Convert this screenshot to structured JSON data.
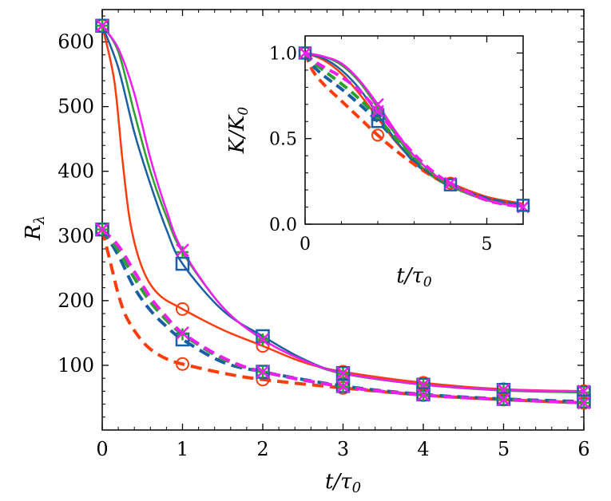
{
  "chart_data": [
    {
      "name": "main",
      "type": "line",
      "xlabel": "t/τ0",
      "ylabel": "Rλ",
      "xlim": [
        0,
        6
      ],
      "ylim": [
        0,
        650
      ],
      "xticks": [
        0,
        1,
        2,
        3,
        4,
        5,
        6
      ],
      "yticks": [
        100,
        200,
        300,
        400,
        500,
        600
      ],
      "series": [
        {
          "name": "red-solid",
          "color": "#ff3d0c",
          "dash": false,
          "marker": "circle",
          "x": [
            0,
            0.15,
            0.25,
            0.35,
            0.5,
            0.7,
            1,
            1.5,
            2,
            2.5,
            3,
            4,
            5,
            6
          ],
          "y": [
            625,
            540,
            420,
            320,
            250,
            210,
            187,
            155,
            130,
            105,
            90,
            73,
            63,
            60
          ]
        },
        {
          "name": "blue-solid",
          "color": "#1a5fa4",
          "dash": false,
          "marker": "square",
          "x": [
            0,
            0.2,
            0.4,
            0.6,
            0.8,
            1,
            1.5,
            2,
            2.5,
            3,
            4,
            5,
            6
          ],
          "y": [
            625,
            560,
            460,
            380,
            310,
            257,
            185,
            145,
            110,
            88,
            70,
            62,
            58
          ]
        },
        {
          "name": "green-solid",
          "color": "#2ca02c",
          "dash": false,
          "marker": "plus",
          "x": [
            0,
            0.2,
            0.4,
            0.6,
            0.8,
            1,
            1.5,
            2,
            2.5,
            3,
            4,
            5,
            6
          ],
          "y": [
            625,
            585,
            490,
            400,
            330,
            275,
            190,
            140,
            108,
            87,
            70,
            61,
            58
          ]
        },
        {
          "name": "magenta-solid",
          "color": "#f01ef0",
          "dash": false,
          "marker": "x",
          "x": [
            0,
            0.2,
            0.4,
            0.6,
            0.8,
            1,
            1.5,
            2,
            2.5,
            3,
            4,
            5,
            6
          ],
          "y": [
            625,
            590,
            520,
            420,
            340,
            278,
            190,
            140,
            108,
            88,
            70,
            62,
            60
          ]
        },
        {
          "name": "red-dashed",
          "color": "#ff3d0c",
          "dash": true,
          "marker": "circle",
          "x": [
            0,
            0.1,
            0.2,
            0.3,
            0.45,
            0.6,
            0.8,
            1,
            1.5,
            2,
            3,
            4,
            5,
            6
          ],
          "y": [
            310,
            260,
            210,
            175,
            145,
            125,
            110,
            102,
            88,
            78,
            65,
            54,
            47,
            42
          ]
        },
        {
          "name": "blue-dashed",
          "color": "#1a5fa4",
          "dash": true,
          "marker": "square",
          "x": [
            0,
            0.2,
            0.4,
            0.6,
            0.8,
            1,
            1.5,
            2,
            3,
            4,
            5,
            6
          ],
          "y": [
            310,
            270,
            220,
            185,
            160,
            140,
            105,
            90,
            68,
            55,
            48,
            44
          ]
        },
        {
          "name": "green-dashed",
          "color": "#2ca02c",
          "dash": true,
          "marker": "plus",
          "x": [
            0,
            0.2,
            0.4,
            0.6,
            0.8,
            1,
            1.5,
            2,
            3,
            4,
            5,
            6
          ],
          "y": [
            310,
            278,
            235,
            198,
            170,
            148,
            110,
            90,
            67,
            54,
            47,
            42
          ]
        },
        {
          "name": "magenta-dashed",
          "color": "#f01ef0",
          "dash": true,
          "marker": "x",
          "x": [
            0,
            0.2,
            0.4,
            0.6,
            0.8,
            1,
            1.5,
            2,
            3,
            4,
            5,
            6
          ],
          "y": [
            310,
            285,
            245,
            205,
            175,
            150,
            112,
            90,
            67,
            54,
            47,
            42
          ]
        }
      ],
      "markers_at": [
        0,
        1,
        2,
        3,
        4,
        5,
        6
      ],
      "marker_values": {
        "red-solid": [
          625,
          187,
          130,
          90,
          73,
          63,
          60
        ],
        "blue-solid": [
          625,
          257,
          145,
          88,
          70,
          62,
          58
        ],
        "green-solid": [
          625,
          275,
          140,
          87,
          70,
          61,
          58
        ],
        "magenta-solid": [
          625,
          278,
          140,
          88,
          70,
          62,
          60
        ],
        "red-dashed": [
          310,
          102,
          78,
          65,
          54,
          47,
          42
        ],
        "blue-dashed": [
          310,
          140,
          90,
          68,
          55,
          48,
          44
        ],
        "green-dashed": [
          310,
          148,
          90,
          67,
          54,
          47,
          42
        ],
        "magenta-dashed": [
          310,
          150,
          90,
          67,
          54,
          47,
          42
        ]
      }
    },
    {
      "name": "inset",
      "type": "line",
      "xlabel": "t/τ0",
      "ylabel": "K/K0",
      "xlim": [
        0,
        6
      ],
      "ylim": [
        0,
        1.1
      ],
      "xticks": [
        0,
        5
      ],
      "yticks": [
        0.0,
        0.5,
        1.0
      ],
      "ytick_labels": [
        "0.0",
        "0.5",
        "1.0"
      ],
      "series": [
        {
          "name": "red-solid",
          "color": "#ff3d0c",
          "dash": false,
          "x": [
            0,
            0.5,
            1,
            1.5,
            2,
            2.5,
            3,
            3.5,
            4,
            5,
            6
          ],
          "y": [
            1.0,
            0.96,
            0.88,
            0.76,
            0.62,
            0.48,
            0.37,
            0.29,
            0.24,
            0.16,
            0.12
          ]
        },
        {
          "name": "blue-solid",
          "color": "#1a5fa4",
          "dash": false,
          "x": [
            0,
            0.5,
            1,
            1.5,
            2,
            2.5,
            3,
            3.5,
            4,
            5,
            6
          ],
          "y": [
            1.0,
            0.97,
            0.9,
            0.79,
            0.64,
            0.49,
            0.36,
            0.28,
            0.23,
            0.15,
            0.11
          ]
        },
        {
          "name": "green-solid",
          "color": "#2ca02c",
          "dash": false,
          "x": [
            0,
            0.5,
            1,
            1.5,
            2,
            2.5,
            3,
            3.5,
            4,
            5,
            6
          ],
          "y": [
            1.0,
            0.98,
            0.93,
            0.83,
            0.68,
            0.52,
            0.38,
            0.28,
            0.22,
            0.14,
            0.1
          ]
        },
        {
          "name": "magenta-solid",
          "color": "#f01ef0",
          "dash": false,
          "x": [
            0,
            0.5,
            1,
            1.5,
            2,
            2.5,
            3,
            3.5,
            4,
            5,
            6
          ],
          "y": [
            1.0,
            0.98,
            0.94,
            0.84,
            0.7,
            0.54,
            0.4,
            0.3,
            0.23,
            0.14,
            0.1
          ]
        },
        {
          "name": "red-dashed",
          "color": "#ff3d0c",
          "dash": true,
          "x": [
            0,
            0.2,
            0.5,
            1,
            1.5,
            2,
            2.5,
            3,
            3.5,
            4,
            5,
            6
          ],
          "y": [
            1.0,
            0.9,
            0.82,
            0.72,
            0.62,
            0.52,
            0.43,
            0.35,
            0.28,
            0.23,
            0.15,
            0.11
          ]
        },
        {
          "name": "blue-dashed",
          "color": "#1a5fa4",
          "dash": true,
          "x": [
            0,
            0.2,
            0.5,
            1,
            1.5,
            2,
            2.5,
            3,
            3.5,
            4,
            5,
            6
          ],
          "y": [
            1.0,
            0.93,
            0.87,
            0.79,
            0.7,
            0.6,
            0.49,
            0.38,
            0.29,
            0.23,
            0.15,
            0.11
          ]
        },
        {
          "name": "green-dashed",
          "color": "#2ca02c",
          "dash": true,
          "x": [
            0,
            0.2,
            0.5,
            1,
            1.5,
            2,
            2.5,
            3,
            3.5,
            4,
            5,
            6
          ],
          "y": [
            1.0,
            0.95,
            0.9,
            0.82,
            0.73,
            0.62,
            0.5,
            0.39,
            0.3,
            0.23,
            0.14,
            0.1
          ]
        },
        {
          "name": "magenta-dashed",
          "color": "#f01ef0",
          "dash": true,
          "x": [
            0,
            0.2,
            0.5,
            1,
            1.5,
            2,
            2.5,
            3,
            3.5,
            4,
            5,
            6
          ],
          "y": [
            1.0,
            0.96,
            0.92,
            0.86,
            0.78,
            0.66,
            0.53,
            0.41,
            0.31,
            0.24,
            0.14,
            0.1
          ]
        }
      ],
      "markers": [
        {
          "series": "red-dashed",
          "marker": "circle",
          "x": 2,
          "y": 0.52
        },
        {
          "series": "red-solid",
          "marker": "circle",
          "x": 4,
          "y": 0.24
        },
        {
          "series": "blue-solid",
          "marker": "square",
          "x": 2,
          "y": 0.64
        },
        {
          "series": "blue-dashed",
          "marker": "square",
          "x": 2,
          "y": 0.6
        },
        {
          "series": "blue-solid",
          "marker": "square",
          "x": 4,
          "y": 0.23
        },
        {
          "series": "green-solid",
          "marker": "plus",
          "x": 2,
          "y": 0.68
        },
        {
          "series": "magenta-solid",
          "marker": "x",
          "x": 2,
          "y": 0.7
        },
        {
          "series": "magenta-dashed",
          "marker": "x",
          "x": 2,
          "y": 0.66
        },
        {
          "series": "magenta-dashed",
          "marker": "x",
          "x": 4,
          "y": 0.24
        },
        {
          "series": "magenta-solid",
          "marker": "x",
          "x": 6,
          "y": 0.1
        },
        {
          "series": "blue-solid",
          "marker": "square",
          "x": 6,
          "y": 0.11
        },
        {
          "series": "red-dashed",
          "marker": "circle",
          "x": 0,
          "y": 1.0
        },
        {
          "series": "blue-solid",
          "marker": "square",
          "x": 0,
          "y": 1.0
        },
        {
          "series": "magenta-solid",
          "marker": "x",
          "x": 0,
          "y": 1.0
        }
      ]
    }
  ]
}
